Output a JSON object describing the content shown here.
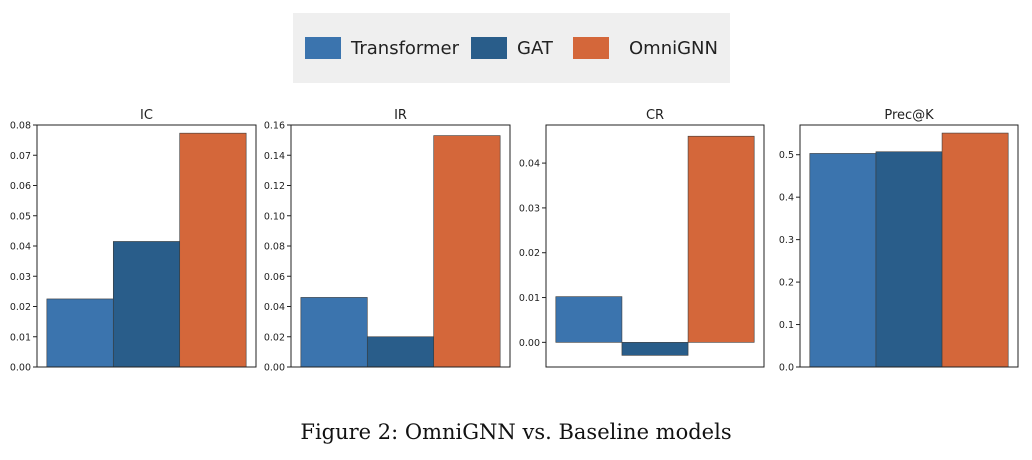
{
  "legend": {
    "items": [
      {
        "label": "Transformer",
        "color": "#3b74ae"
      },
      {
        "label": "GAT",
        "color": "#295d8a"
      },
      {
        "label": "OmniGNN",
        "color": "#d4673a"
      }
    ]
  },
  "caption": "Figure 2: OmniGNN vs. Baseline models",
  "chart_data": [
    {
      "type": "bar",
      "title": "IC",
      "categories": [
        "Transformer",
        "GAT",
        "OmniGNN"
      ],
      "values": [
        0.0225,
        0.0415,
        0.0773
      ],
      "ylim": [
        0,
        0.08
      ],
      "yticks": [
        "0.00",
        "0.01",
        "0.02",
        "0.03",
        "0.04",
        "0.05",
        "0.06",
        "0.07",
        "0.08"
      ],
      "ytick_values": [
        0,
        0.01,
        0.02,
        0.03,
        0.04,
        0.05,
        0.06,
        0.07,
        0.08
      ],
      "colors": [
        "#3b74ae",
        "#295d8a",
        "#d4673a"
      ],
      "grid": false
    },
    {
      "type": "bar",
      "title": "IR",
      "categories": [
        "Transformer",
        "GAT",
        "OmniGNN"
      ],
      "values": [
        0.046,
        0.02,
        0.153
      ],
      "ylim": [
        0,
        0.16
      ],
      "yticks": [
        "0.00",
        "0.02",
        "0.04",
        "0.06",
        "0.08",
        "0.10",
        "0.12",
        "0.14",
        "0.16"
      ],
      "ytick_values": [
        0,
        0.02,
        0.04,
        0.06,
        0.08,
        0.1,
        0.12,
        0.14,
        0.16
      ],
      "colors": [
        "#3b74ae",
        "#295d8a",
        "#d4673a"
      ],
      "grid": false
    },
    {
      "type": "bar",
      "title": "CR",
      "categories": [
        "Transformer",
        "GAT",
        "OmniGNN"
      ],
      "values": [
        0.0102,
        -0.0029,
        0.046
      ],
      "ylim": [
        -0.0055,
        0.0485
      ],
      "yticks": [
        "0.00",
        "0.01",
        "0.02",
        "0.03",
        "0.04"
      ],
      "ytick_values": [
        0,
        0.01,
        0.02,
        0.03,
        0.04
      ],
      "colors": [
        "#3b74ae",
        "#295d8a",
        "#d4673a"
      ],
      "grid": false
    },
    {
      "type": "bar",
      "title": "Prec@K",
      "categories": [
        "Transformer",
        "GAT",
        "OmniGNN"
      ],
      "values": [
        0.503,
        0.507,
        0.551
      ],
      "ylim": [
        0,
        0.57
      ],
      "yticks": [
        "0.0",
        "0.1",
        "0.2",
        "0.3",
        "0.4",
        "0.5"
      ],
      "ytick_values": [
        0,
        0.1,
        0.2,
        0.3,
        0.4,
        0.5
      ],
      "colors": [
        "#3b74ae",
        "#295d8a",
        "#d4673a"
      ],
      "grid": false
    }
  ]
}
